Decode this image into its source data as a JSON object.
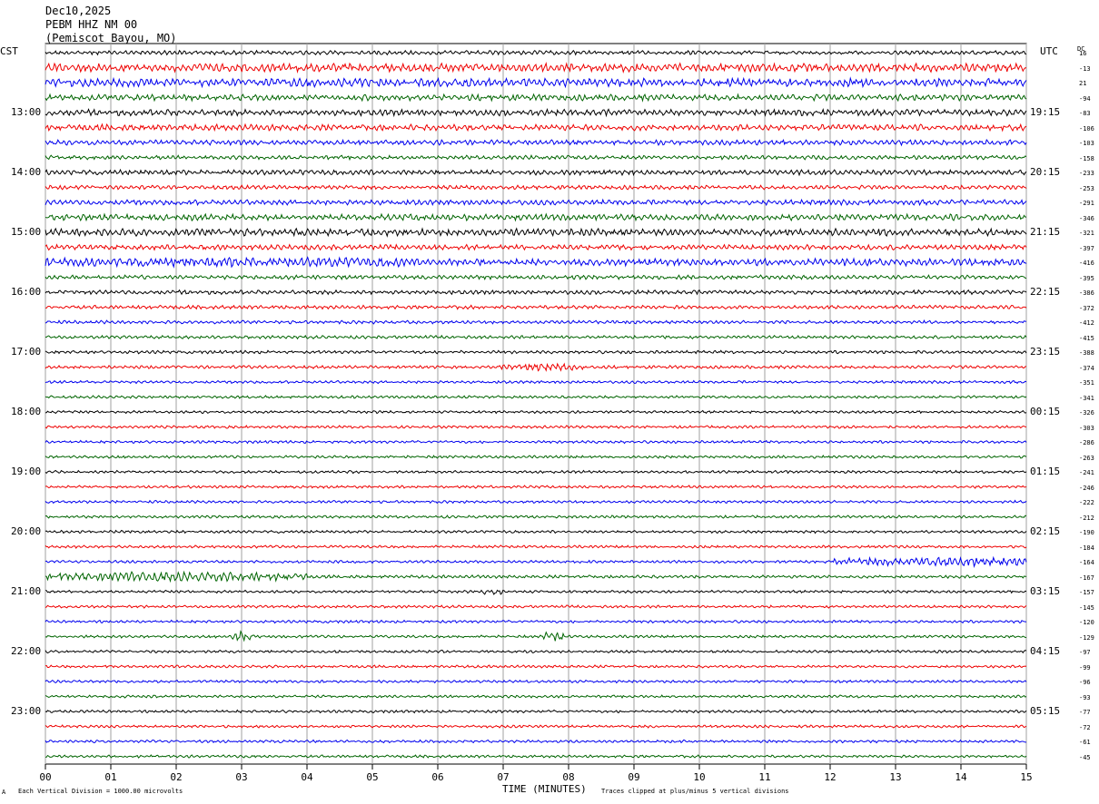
{
  "header": {
    "date": "Dec10,2025",
    "station": "PEBM HHZ NM 00",
    "location": "(Pemiscot Bayou, MO)"
  },
  "left_zone": "CST",
  "right_zone": "UTC",
  "dc_header": "DC",
  "footer": {
    "scale_note": "Each Vertical Division = 1000.00 microvolts",
    "clip_note": "Traces clipped at plus/minus 5 vertical divisions",
    "corner_mark": "A"
  },
  "colors": {
    "line0": "#000000",
    "line1": "#ee0000",
    "line2": "#0000ee",
    "line3": "#006400",
    "grid": "#a0a0a0"
  },
  "chart_data": {
    "type": "line",
    "title": "PEBM HHZ NM 00",
    "xlabel": "TIME (MINUTES)",
    "x_ticks": [
      "00",
      "01",
      "02",
      "03",
      "04",
      "05",
      "06",
      "07",
      "08",
      "09",
      "10",
      "11",
      "12",
      "13",
      "14",
      "15"
    ],
    "xlim": [
      0,
      15
    ],
    "left_hour_labels": [
      "13:00",
      "14:00",
      "15:00",
      "16:00",
      "17:00",
      "18:00",
      "19:00",
      "20:00",
      "21:00",
      "22:00",
      "23:00"
    ],
    "right_hour_labels": [
      "19:15",
      "20:15",
      "21:15",
      "22:15",
      "23:15",
      "00:15",
      "01:15",
      "02:15",
      "03:15",
      "04:15",
      "05:15"
    ],
    "dc_offsets": [
      16,
      -13,
      21,
      -94,
      -83,
      -106,
      -103,
      -158,
      -233,
      -253,
      -291,
      -346,
      -321,
      -397,
      -416,
      -395,
      -386,
      -372,
      -412,
      -415,
      -388,
      -374,
      -351,
      -341,
      -326,
      -303,
      -286,
      -263,
      -241,
      -246,
      -222,
      -212,
      -190,
      -184,
      -164,
      -167,
      -157,
      -145,
      -120,
      -129,
      -97,
      -99,
      -96,
      -93,
      -77,
      -72,
      -61,
      -45
    ],
    "trace_amplitude": [
      2,
      4,
      4,
      3,
      3,
      3,
      2.5,
      2,
      2.5,
      2,
      2.5,
      3,
      3.5,
      2.5,
      3.5,
      2,
      2,
      1.8,
      1.6,
      1.5,
      1.5,
      1.5,
      1.3,
      1.3,
      1.3,
      1.3,
      1.3,
      1.3,
      1.3,
      1.3,
      1.3,
      1.3,
      1.3,
      1.3,
      1.3,
      1.5,
      1.3,
      1.3,
      1.3,
      1.3,
      1.3,
      1.3,
      1.3,
      1.3,
      1.3,
      1.3,
      1.3,
      1.3
    ],
    "events": [
      {
        "row": 1,
        "minute_start": 14.8,
        "minute_end": 15.0,
        "amp": 6
      },
      {
        "row": 14,
        "minute_start": 0.0,
        "minute_end": 5.5,
        "amp": 5
      },
      {
        "row": 21,
        "minute_start": 6.9,
        "minute_end": 8.3,
        "amp": 4
      },
      {
        "row": 34,
        "minute_start": 12.0,
        "minute_end": 15.0,
        "amp": 5
      },
      {
        "row": 35,
        "minute_start": 0.0,
        "minute_end": 4.0,
        "amp": 5
      },
      {
        "row": 36,
        "minute_start": 6.7,
        "minute_end": 7.0,
        "amp": 4
      },
      {
        "row": 39,
        "minute_start": 2.8,
        "minute_end": 3.2,
        "amp": 5
      },
      {
        "row": 39,
        "minute_start": 7.6,
        "minute_end": 7.95,
        "amp": 5
      }
    ]
  }
}
